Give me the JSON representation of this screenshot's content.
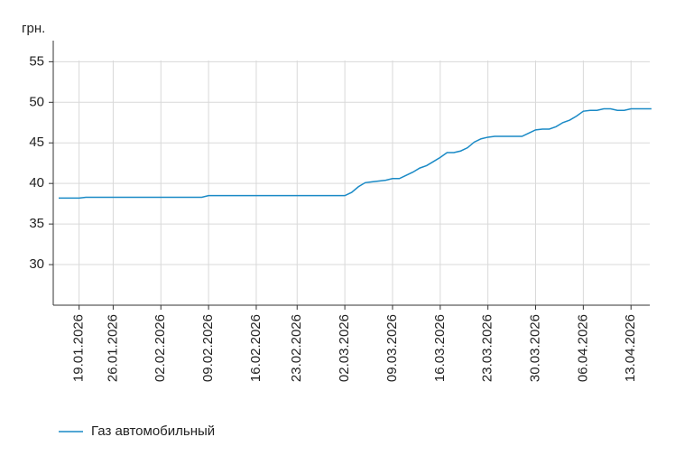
{
  "chart_data": {
    "type": "line",
    "y_label": "грн.",
    "categories": [
      null,
      null,
      null,
      "19.01.2026",
      null,
      null,
      null,
      null,
      "26.01.2026",
      null,
      null,
      null,
      null,
      null,
      null,
      "02.02.2026",
      null,
      null,
      null,
      null,
      null,
      null,
      "09.02.2026",
      null,
      null,
      null,
      null,
      null,
      null,
      "16.02.2026",
      null,
      null,
      null,
      null,
      null,
      "23.02.2026",
      null,
      null,
      null,
      null,
      null,
      null,
      "02.03.2026",
      null,
      null,
      null,
      null,
      null,
      null,
      "09.03.2026",
      null,
      null,
      null,
      null,
      null,
      null,
      "16.03.2026",
      null,
      null,
      null,
      null,
      null,
      null,
      "23.03.2026",
      null,
      null,
      null,
      null,
      null,
      null,
      "30.03.2026",
      null,
      null,
      null,
      null,
      null,
      null,
      "06.04.2026",
      null,
      null,
      null,
      null,
      null,
      null,
      "13.04.2026",
      null,
      null,
      null
    ],
    "series": [
      {
        "name": "Газ автомобильный",
        "color": "#1a8ac6",
        "values": [
          38.2,
          38.2,
          38.2,
          38.2,
          38.3,
          38.3,
          38.3,
          38.3,
          38.3,
          38.3,
          38.3,
          38.3,
          38.3,
          38.3,
          38.3,
          38.3,
          38.3,
          38.3,
          38.3,
          38.3,
          38.3,
          38.3,
          38.5,
          38.5,
          38.5,
          38.5,
          38.5,
          38.5,
          38.5,
          38.5,
          38.5,
          38.5,
          38.5,
          38.5,
          38.5,
          38.5,
          38.5,
          38.5,
          38.5,
          38.5,
          38.5,
          38.5,
          38.5,
          38.9,
          39.6,
          40.1,
          40.2,
          40.3,
          40.4,
          40.6,
          40.6,
          41.0,
          41.4,
          41.9,
          42.2,
          42.7,
          43.2,
          43.8,
          43.8,
          44.0,
          44.4,
          45.1,
          45.5,
          45.7,
          45.8,
          45.8,
          45.8,
          45.8,
          45.8,
          46.2,
          46.6,
          46.7,
          46.7,
          47.0,
          47.5,
          47.8,
          48.3,
          48.9,
          49.0,
          49.0,
          49.2,
          49.2,
          49.0,
          49.0,
          49.2,
          49.2,
          49.2,
          49.2
        ]
      }
    ],
    "ylim": [
      25,
      57.6
    ],
    "yticks": [
      30,
      35,
      40,
      45,
      50,
      55
    ],
    "grid": true
  }
}
